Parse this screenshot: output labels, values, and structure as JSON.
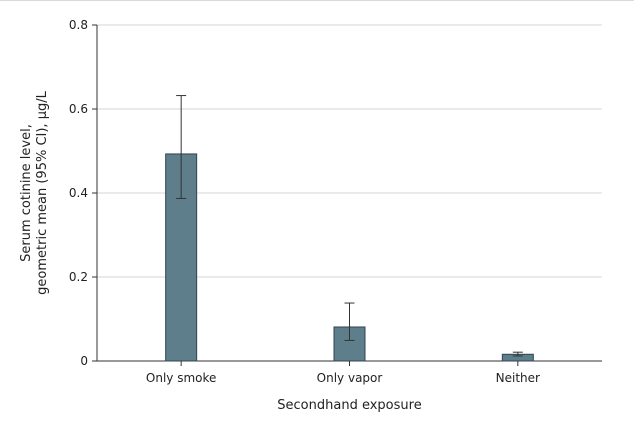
{
  "chart_data": {
    "type": "bar",
    "title": "",
    "xlabel": "Secondhand exposure",
    "ylabel_lines": [
      "Serum cotinine level,",
      "geometric mean (95% CI), µg/L"
    ],
    "categories": [
      "Only smoke",
      "Only vapor",
      "Neither"
    ],
    "values": [
      0.493,
      0.081,
      0.016
    ],
    "ci_lower": [
      0.387,
      0.049,
      0.012
    ],
    "ci_upper": [
      0.632,
      0.138,
      0.021
    ],
    "ylim": [
      0,
      0.8
    ],
    "yticks": [
      0,
      0.2,
      0.4,
      0.6,
      0.8
    ],
    "ytick_labels": [
      "0",
      "0.2",
      "0.4",
      "0.6",
      "0.8"
    ],
    "grid": true,
    "bar_color": "#5e7e8b",
    "bar_edge_color": "#2f4550",
    "grid_color": "#d6d6d6"
  }
}
